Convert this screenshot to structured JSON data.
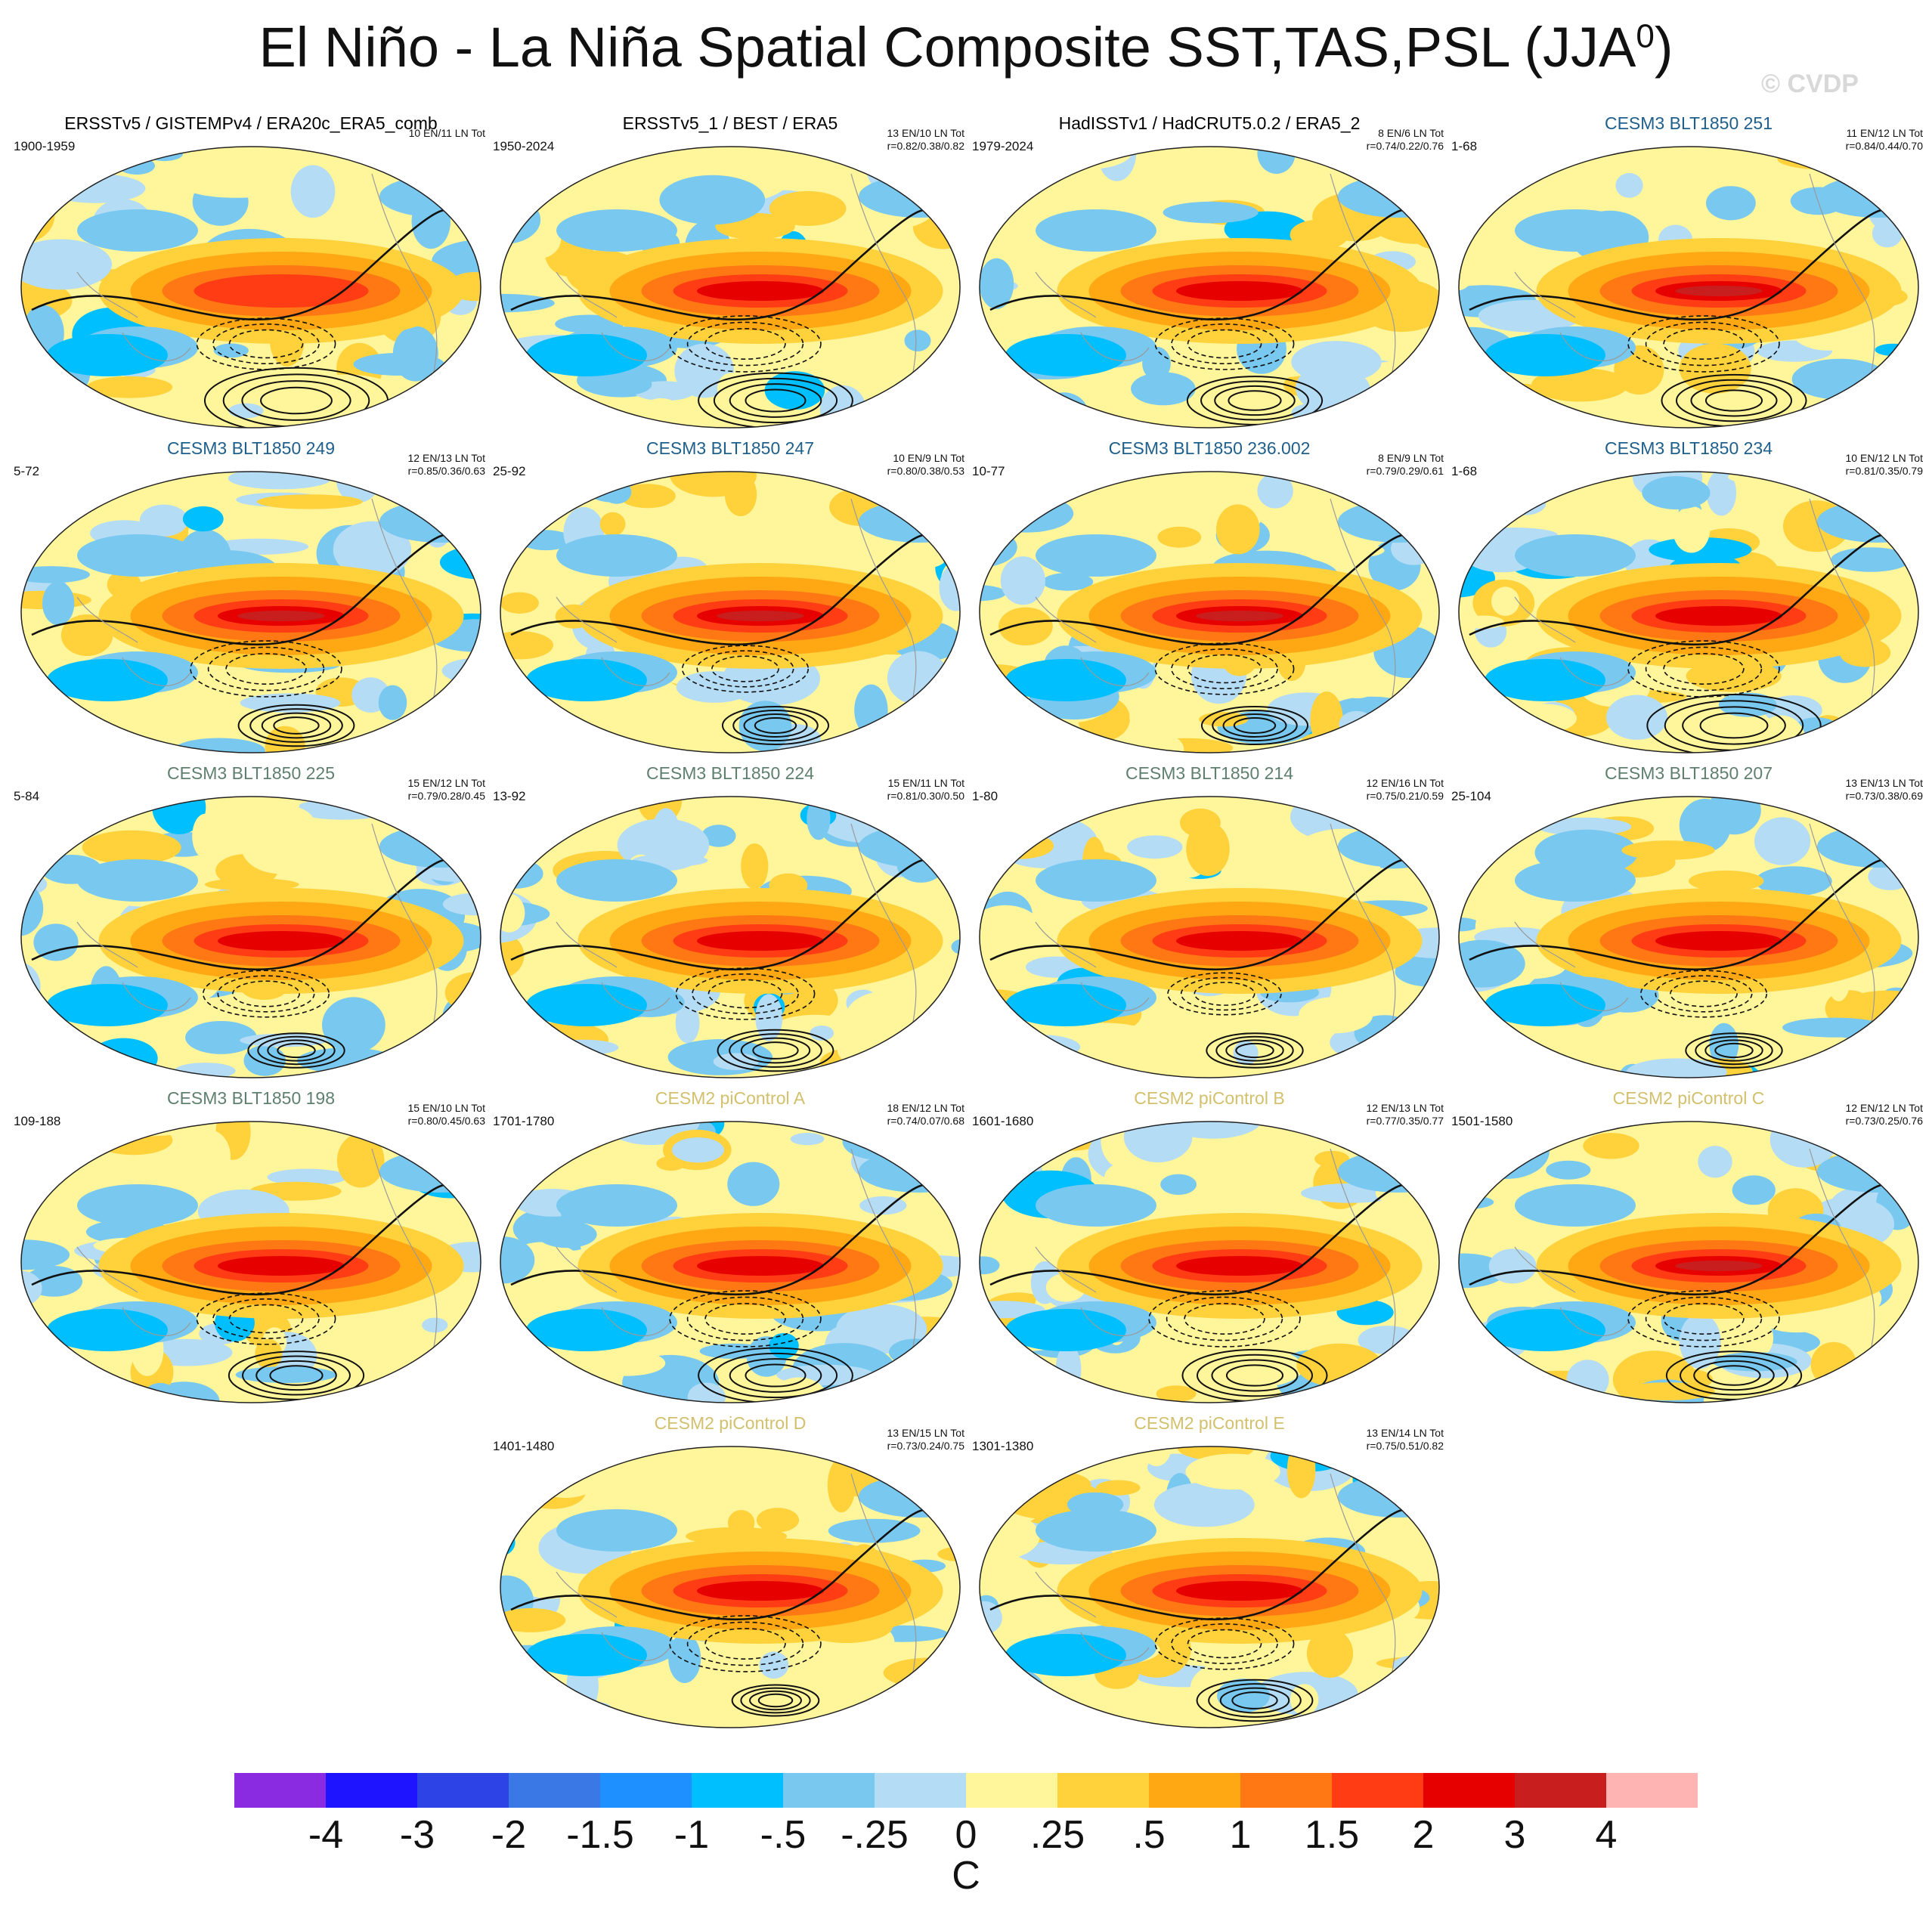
{
  "title": "El Niño - La Niña Spatial Composite SST,TAS,PSL (JJA",
  "title_sup": "0",
  "title_suffix": ")",
  "watermark": "© CVDP",
  "chart_data": {
    "type": "heatmap",
    "title": "El Niño - La Niña Spatial Composite SST,TAS,PSL (JJA0)",
    "colorbar": {
      "units": "C",
      "ticks": [
        "-4",
        "-3",
        "-2",
        "-1.5",
        "-1",
        "-.5",
        "-.25",
        "0",
        ".25",
        ".5",
        "1",
        "1.5",
        "2",
        "3",
        "4"
      ],
      "colors": [
        "#8a2be2",
        "#1e14ff",
        "#2d43e6",
        "#3a78e6",
        "#1e90ff",
        "#00bfff",
        "#78c8f0",
        "#b4dcf5",
        "#fff59b",
        "#ffd23c",
        "#ffa814",
        "#ff7814",
        "#ff3c14",
        "#e60000",
        "#c81e1e",
        "#ffb4b4"
      ]
    },
    "panels": [
      {
        "title": "ERSSTv5 / GISTEMPv4 / ERA20c_ERA5_comb",
        "years": "1900-1959",
        "stats1": "10 EN/11 LN Tot",
        "stats2": "",
        "color": "#000000",
        "nino": 0.75,
        "pneg": 0.55,
        "ppos": 0.95
      },
      {
        "title": "ERSSTv5_1 / BEST / ERA5",
        "years": "1950-2024",
        "stats1": "13 EN/10 LN Tot",
        "stats2": "r=0.82/0.38/0.82",
        "color": "#000000",
        "nino": 0.85,
        "pneg": 0.6,
        "ppos": 0.8
      },
      {
        "title": "HadISSTv1 / HadCRUT5.0.2 / ERA5_2",
        "years": "1979-2024",
        "stats1": "8 EN/6 LN Tot",
        "stats2": "r=0.74/0.22/0.76",
        "color": "#000000",
        "nino": 0.95,
        "pneg": 0.55,
        "ppos": 0.7
      },
      {
        "title": "CESM3 BLT1850 251",
        "years": "1-68",
        "stats1": "11 EN/12 LN Tot",
        "stats2": "r=0.84/0.44/0.70",
        "color": "#1f5f8b",
        "nino": 1.15,
        "pneg": 0.6,
        "ppos": 0.75
      },
      {
        "title": "CESM3 BLT1850 249",
        "years": "5-72",
        "stats1": "12 EN/13 LN Tot",
        "stats2": "r=0.85/0.36/0.63",
        "color": "#1f5f8b",
        "nino": 1.15,
        "pneg": 0.6,
        "ppos": 0.6
      },
      {
        "title": "CESM3 BLT1850 247",
        "years": "25-92",
        "stats1": "10 EN/9 LN Tot",
        "stats2": "r=0.80/0.38/0.53",
        "color": "#1f5f8b",
        "nino": 1.3,
        "pneg": 0.5,
        "ppos": 0.55
      },
      {
        "title": "CESM3 BLT1850 236.002",
        "years": "10-77",
        "stats1": "8 EN/9 LN Tot",
        "stats2": "r=0.79/0.29/0.61",
        "color": "#1f5f8b",
        "nino": 1.15,
        "pneg": 0.55,
        "ppos": 0.55
      },
      {
        "title": "CESM3 BLT1850 234",
        "years": "1-68",
        "stats1": "10 EN/12 LN Tot",
        "stats2": "r=0.81/0.35/0.79",
        "color": "#1f5f8b",
        "nino": 1.1,
        "pneg": 0.6,
        "ppos": 0.9
      },
      {
        "title": "CESM3 BLT1850 225",
        "years": "5-84",
        "stats1": "15 EN/12 LN Tot",
        "stats2": "r=0.79/0.28/0.45",
        "color": "#5f7f6f",
        "nino": 1.05,
        "pneg": 0.5,
        "ppos": 0.5
      },
      {
        "title": "CESM3 BLT1850 224",
        "years": "13-92",
        "stats1": "15 EN/11 LN Tot",
        "stats2": "r=0.81/0.30/0.50",
        "color": "#5f7f6f",
        "nino": 1.0,
        "pneg": 0.55,
        "ppos": 0.6
      },
      {
        "title": "CESM3 BLT1850 214",
        "years": "1-80",
        "stats1": "12 EN/16 LN Tot",
        "stats2": "r=0.75/0.21/0.59",
        "color": "#5f7f6f",
        "nino": 1.0,
        "pneg": 0.45,
        "ppos": 0.5
      },
      {
        "title": "CESM3 BLT1850 207",
        "years": "25-104",
        "stats1": "13 EN/13 LN Tot",
        "stats2": "r=0.73/0.38/0.69",
        "color": "#5f7f6f",
        "nino": 0.95,
        "pneg": 0.5,
        "ppos": 0.5
      },
      {
        "title": "CESM3 BLT1850 198",
        "years": "109-188",
        "stats1": "15 EN/10 LN Tot",
        "stats2": "r=0.80/0.45/0.63",
        "color": "#5f7f6f",
        "nino": 1.0,
        "pneg": 0.55,
        "ppos": 0.7
      },
      {
        "title": "CESM2 piControl A",
        "years": "1701-1780",
        "stats1": "18 EN/12 LN Tot",
        "stats2": "r=0.74/0.07/0.68",
        "color": "#d2c06c",
        "nino": 1.05,
        "pneg": 0.6,
        "ppos": 0.8
      },
      {
        "title": "CESM2 piControl B",
        "years": "1601-1680",
        "stats1": "12 EN/13 LN Tot",
        "stats2": "r=0.77/0.35/0.77",
        "color": "#d2c06c",
        "nino": 1.05,
        "pneg": 0.6,
        "ppos": 0.75
      },
      {
        "title": "CESM2 piControl C",
        "years": "1501-1580",
        "stats1": "12 EN/12 LN Tot",
        "stats2": "r=0.73/0.25/0.76",
        "color": "#d2c06c",
        "nino": 1.2,
        "pneg": 0.6,
        "ppos": 0.7
      },
      {
        "title": "CESM2 piControl D",
        "years": "1401-1480",
        "stats1": "13 EN/15 LN Tot",
        "stats2": "r=0.73/0.24/0.75",
        "color": "#d2c06c",
        "nino": 1.1,
        "pneg": 0.6,
        "ppos": 0.45
      },
      {
        "title": "CESM2 piControl E",
        "years": "1301-1380",
        "stats1": "13 EN/14 LN Tot",
        "stats2": "r=0.75/0.51/0.82",
        "color": "#d2c06c",
        "nino": 1.1,
        "pneg": 0.55,
        "ppos": 0.6
      }
    ]
  }
}
